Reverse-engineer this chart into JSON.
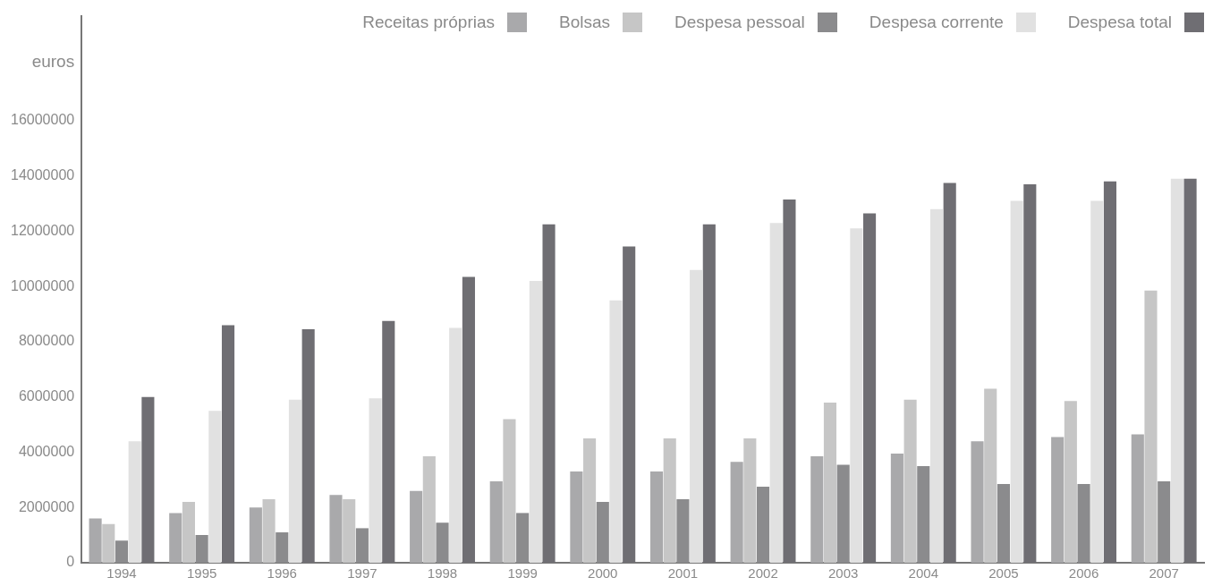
{
  "chart_data": {
    "type": "bar",
    "ylabel": "euros",
    "categories": [
      "1994",
      "1995",
      "1996",
      "1997",
      "1998",
      "1999",
      "2000",
      "2001",
      "2002",
      "2003",
      "2004",
      "2005",
      "2006",
      "2007"
    ],
    "series": [
      {
        "name": "Receitas próprias",
        "color": "#a9a9ab",
        "values": [
          1600000,
          1800000,
          2000000,
          2450000,
          2600000,
          2950000,
          3300000,
          3300000,
          3650000,
          3850000,
          3950000,
          4400000,
          4550000,
          4650000
        ]
      },
      {
        "name": "Bolsas",
        "color": "#c6c6c6",
        "values": [
          1400000,
          2200000,
          2300000,
          2300000,
          3850000,
          5200000,
          4500000,
          4500000,
          4500000,
          5800000,
          5900000,
          6300000,
          5850000,
          9850000
        ]
      },
      {
        "name": "Despesa pessoal",
        "color": "#8b8b8d",
        "values": [
          800000,
          1000000,
          1100000,
          1250000,
          1450000,
          1800000,
          2200000,
          2300000,
          2750000,
          3550000,
          3500000,
          2850000,
          2850000,
          2950000
        ]
      },
      {
        "name": "Despesa corrente",
        "color": "#e1e1e1",
        "values": [
          4400000,
          5500000,
          5900000,
          5950000,
          8500000,
          10200000,
          9500000,
          10600000,
          12300000,
          12100000,
          12800000,
          13100000,
          13100000,
          13900000
        ]
      },
      {
        "name": "Despesa total",
        "color": "#6f6e73",
        "values": [
          6000000,
          8600000,
          8450000,
          8750000,
          10350000,
          12250000,
          11450000,
          12250000,
          13150000,
          12650000,
          13750000,
          13700000,
          13800000,
          13900000
        ]
      }
    ],
    "ylim": [
      0,
      19800000
    ],
    "yticks": [
      0,
      2000000,
      4000000,
      6000000,
      8000000,
      10000000,
      12000000,
      14000000,
      16000000
    ],
    "grid": false,
    "legend": "top right"
  }
}
